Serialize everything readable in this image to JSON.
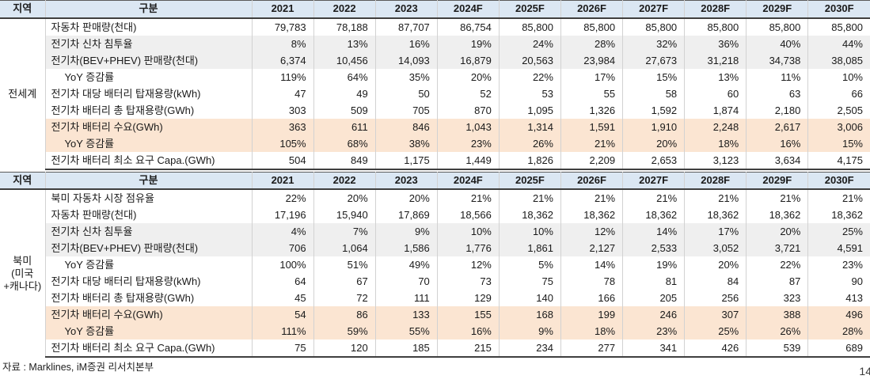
{
  "table": {
    "region_header": "지역",
    "category_header": "구분",
    "year_columns": [
      "2021",
      "2022",
      "2023",
      "2024F",
      "2025F",
      "2026F",
      "2027F",
      "2028F",
      "2029F",
      "2030F"
    ],
    "sections": [
      {
        "region": "전세계",
        "rows": [
          {
            "label": "자동차 판매량(천대)",
            "indent": false,
            "highlight": "none",
            "values": [
              "79,783",
              "78,188",
              "87,707",
              "86,754",
              "85,800",
              "85,800",
              "85,800",
              "85,800",
              "85,800",
              "85,800"
            ]
          },
          {
            "label": "전기차 신차 침투율",
            "indent": false,
            "highlight": "gray",
            "values": [
              "8%",
              "13%",
              "16%",
              "19%",
              "24%",
              "28%",
              "32%",
              "36%",
              "40%",
              "44%"
            ]
          },
          {
            "label": "전기차(BEV+PHEV) 판매량(천대)",
            "indent": false,
            "highlight": "gray",
            "values": [
              "6,374",
              "10,456",
              "14,093",
              "16,879",
              "20,563",
              "23,984",
              "27,673",
              "31,218",
              "34,738",
              "38,085"
            ]
          },
          {
            "label": "YoY 증감률",
            "indent": true,
            "highlight": "none",
            "values": [
              "119%",
              "64%",
              "35%",
              "20%",
              "22%",
              "17%",
              "15%",
              "13%",
              "11%",
              "10%"
            ]
          },
          {
            "label": "전기차 대당 배터리 탑재용량(kWh)",
            "indent": false,
            "highlight": "none",
            "values": [
              "47",
              "49",
              "50",
              "52",
              "53",
              "55",
              "58",
              "60",
              "63",
              "66"
            ]
          },
          {
            "label": "전기차 배터리 총 탑재용량(GWh)",
            "indent": false,
            "highlight": "none",
            "values": [
              "303",
              "509",
              "705",
              "870",
              "1,095",
              "1,326",
              "1,592",
              "1,874",
              "2,180",
              "2,505"
            ]
          },
          {
            "label": "전기차 배터리 수요(GWh)",
            "indent": false,
            "highlight": "peach",
            "values": [
              "363",
              "611",
              "846",
              "1,043",
              "1,314",
              "1,591",
              "1,910",
              "2,248",
              "2,617",
              "3,006"
            ]
          },
          {
            "label": "YoY 증감률",
            "indent": true,
            "highlight": "peach",
            "values": [
              "105%",
              "68%",
              "38%",
              "23%",
              "26%",
              "21%",
              "20%",
              "18%",
              "16%",
              "15%"
            ]
          },
          {
            "label": "전기차 배터리 최소 요구 Capa.(GWh)",
            "indent": false,
            "highlight": "none",
            "values": [
              "504",
              "849",
              "1,175",
              "1,449",
              "1,826",
              "2,209",
              "2,653",
              "3,123",
              "3,634",
              "4,175"
            ]
          }
        ]
      },
      {
        "region": "북미\n(미국\n+캐나다)",
        "rows": [
          {
            "label": "북미 자동차 시장 점유율",
            "indent": false,
            "highlight": "none",
            "values": [
              "22%",
              "20%",
              "20%",
              "21%",
              "21%",
              "21%",
              "21%",
              "21%",
              "21%",
              "21%"
            ]
          },
          {
            "label": "자동차 판매량(천대)",
            "indent": false,
            "highlight": "none",
            "values": [
              "17,196",
              "15,940",
              "17,869",
              "18,566",
              "18,362",
              "18,362",
              "18,362",
              "18,362",
              "18,362",
              "18,362"
            ]
          },
          {
            "label": "전기차 신차 침투율",
            "indent": false,
            "highlight": "gray",
            "values": [
              "4%",
              "7%",
              "9%",
              "10%",
              "10%",
              "12%",
              "14%",
              "17%",
              "20%",
              "25%"
            ]
          },
          {
            "label": "전기차(BEV+PHEV) 판매량(천대)",
            "indent": false,
            "highlight": "gray",
            "values": [
              "706",
              "1,064",
              "1,586",
              "1,776",
              "1,861",
              "2,127",
              "2,533",
              "3,052",
              "3,721",
              "4,591"
            ]
          },
          {
            "label": "YoY 증감률",
            "indent": true,
            "highlight": "none",
            "values": [
              "100%",
              "51%",
              "49%",
              "12%",
              "5%",
              "14%",
              "19%",
              "20%",
              "22%",
              "23%"
            ]
          },
          {
            "label": "전기차 대당 배터리 탑재용량(kWh)",
            "indent": false,
            "highlight": "none",
            "values": [
              "64",
              "67",
              "70",
              "73",
              "75",
              "78",
              "81",
              "84",
              "87",
              "90"
            ]
          },
          {
            "label": "전기차 배터리 총 탑재용량(GWh)",
            "indent": false,
            "highlight": "none",
            "values": [
              "45",
              "72",
              "111",
              "129",
              "140",
              "166",
              "205",
              "256",
              "323",
              "413"
            ]
          },
          {
            "label": "전기차 배터리 수요(GWh)",
            "indent": false,
            "highlight": "peach",
            "values": [
              "54",
              "86",
              "133",
              "155",
              "168",
              "199",
              "246",
              "307",
              "388",
              "496"
            ]
          },
          {
            "label": "YoY 증감률",
            "indent": true,
            "highlight": "peach",
            "values": [
              "111%",
              "59%",
              "55%",
              "16%",
              "9%",
              "18%",
              "23%",
              "25%",
              "26%",
              "28%"
            ]
          },
          {
            "label": "전기차 배터리 최소 요구 Capa.(GWh)",
            "indent": false,
            "highlight": "none",
            "values": [
              "75",
              "120",
              "185",
              "215",
              "234",
              "277",
              "341",
              "426",
              "539",
              "689"
            ]
          }
        ]
      }
    ]
  },
  "footer": {
    "source": "자료 : Marklines, iM증권 리서치본부",
    "page_number": "14"
  },
  "colors": {
    "header_bg": "#dbe7f3",
    "stripe_bg": "#efefef",
    "highlight_bg": "#fbe5d2",
    "border_dark": "#3f3f3f",
    "border_light": "#d2d2d2"
  }
}
